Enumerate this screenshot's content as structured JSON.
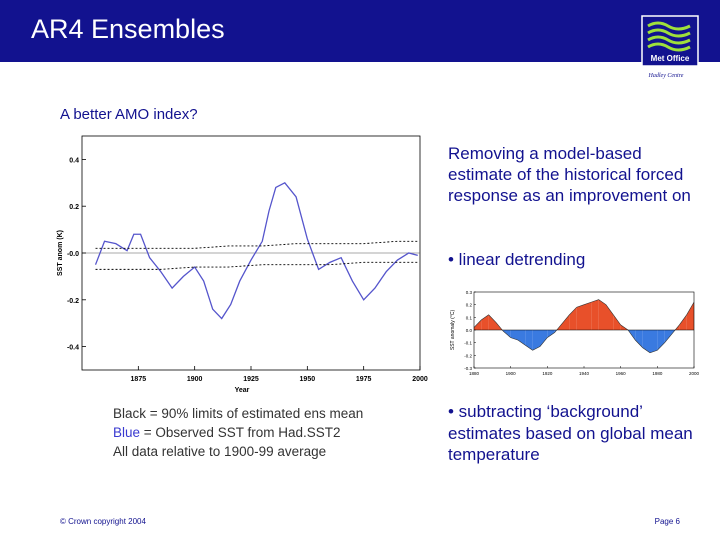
{
  "header": {
    "title": "AR4 Ensembles",
    "logo_text": "Met Office",
    "logo_subtext": "Hadley Centre"
  },
  "subtitle": "A better AMO index?",
  "main_chart": {
    "chart_data": {
      "type": "line",
      "ylabel": "SST anom (K)",
      "xlabel": "Year",
      "xlim": [
        1850,
        2000
      ],
      "ylim": [
        -0.5,
        0.5
      ],
      "x_ticks": [
        "1875",
        "1900",
        "1925",
        "1950",
        "1975",
        "2000"
      ],
      "y_ticks": [
        "0.4",
        "0.2",
        "-0.0",
        "-0.2",
        "-0.4"
      ],
      "series": [
        {
          "color": "#5555cc",
          "x": [
            1856,
            1860,
            1865,
            1870,
            1873,
            1876,
            1880,
            1885,
            1890,
            1895,
            1900,
            1904,
            1908,
            1912,
            1916,
            1920,
            1925,
            1930,
            1933,
            1936,
            1940,
            1945,
            1950,
            1955,
            1960,
            1965,
            1970,
            1975,
            1980,
            1985,
            1990,
            1995,
            1999
          ],
          "y": [
            -0.05,
            0.05,
            0.04,
            0.01,
            0.08,
            0.08,
            -0.02,
            -0.08,
            -0.15,
            -0.1,
            -0.06,
            -0.12,
            -0.24,
            -0.28,
            -0.22,
            -0.12,
            -0.03,
            0.05,
            0.18,
            0.28,
            0.3,
            0.24,
            0.06,
            -0.07,
            -0.04,
            -0.02,
            -0.12,
            -0.2,
            -0.15,
            -0.08,
            -0.03,
            0.0,
            -0.01
          ]
        },
        {
          "color": "#000000",
          "x": [
            1856,
            1870,
            1885,
            1900,
            1915,
            1930,
            1945,
            1960,
            1975,
            1990,
            1999
          ],
          "y": [
            0.02,
            0.02,
            0.02,
            0.02,
            0.03,
            0.03,
            0.04,
            0.04,
            0.04,
            0.05,
            0.05
          ]
        },
        {
          "color": "#000000",
          "x": [
            1856,
            1870,
            1885,
            1900,
            1915,
            1930,
            1945,
            1960,
            1975,
            1990,
            1999
          ],
          "y": [
            -0.07,
            -0.07,
            -0.07,
            -0.06,
            -0.06,
            -0.05,
            -0.05,
            -0.05,
            -0.04,
            -0.04,
            -0.04
          ]
        }
      ]
    }
  },
  "right_text": "Removing a model-based estimate of the historical forced response as an improvement on",
  "bullet1": "• linear detrending",
  "small_chart": {
    "chart_data": {
      "type": "area",
      "ylabel": "SST anomaly (°C)",
      "xlim": [
        1880,
        2000
      ],
      "ylim": [
        -0.3,
        0.3
      ],
      "x_ticks": [
        "1880",
        "1900",
        "1920",
        "1940",
        "1960",
        "1980",
        "2000"
      ],
      "y_ticks": [
        "0.3",
        "0.2",
        "0.1",
        "0.0",
        "-0.1",
        "-0.2",
        "-0.3"
      ],
      "colors": {
        "positive": "#e8502a",
        "negative": "#3a7ae0"
      },
      "x": [
        1880,
        1884,
        1888,
        1892,
        1896,
        1900,
        1904,
        1908,
        1912,
        1916,
        1920,
        1924,
        1928,
        1932,
        1936,
        1940,
        1944,
        1948,
        1952,
        1956,
        1960,
        1964,
        1968,
        1972,
        1976,
        1980,
        1984,
        1988,
        1992,
        1996,
        2000
      ],
      "y": [
        0.02,
        0.08,
        0.12,
        0.06,
        -0.01,
        -0.06,
        -0.08,
        -0.12,
        -0.16,
        -0.13,
        -0.06,
        -0.02,
        0.05,
        0.12,
        0.18,
        0.2,
        0.22,
        0.24,
        0.2,
        0.12,
        0.04,
        0.0,
        -0.08,
        -0.14,
        -0.18,
        -0.16,
        -0.1,
        -0.03,
        0.04,
        0.12,
        0.22
      ]
    }
  },
  "legend": {
    "line1": "Black = 90% limits of estimated ens mean",
    "line2_blue": "Blue",
    "line2_rest": " = Observed SST from Had.SST2",
    "line3": "All data relative to 1900-99 average"
  },
  "bullet2": "• subtracting ‘background’ estimates based on global mean temperature",
  "footer": {
    "copyright": "© Crown copyright 2004",
    "page": "Page 6"
  }
}
